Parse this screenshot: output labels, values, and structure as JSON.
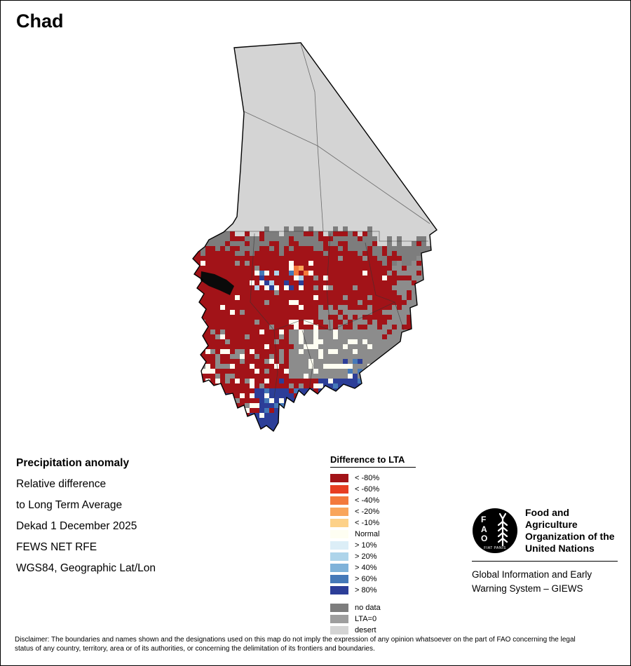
{
  "page": {
    "title": "Chad"
  },
  "info": {
    "heading": "Precipitation anomaly",
    "lines": [
      "Relative difference",
      "to Long Term Average",
      "Dekad 1 December 2025",
      "FEWS NET RFE",
      "WGS84, Geographic Lat/Lon"
    ]
  },
  "legend": {
    "title": "Difference to LTA",
    "items": [
      {
        "label": "< -80%",
        "color": "#a21318"
      },
      {
        "label": "< -60%",
        "color": "#e73e22"
      },
      {
        "label": "< -40%",
        "color": "#f3793b"
      },
      {
        "label": "< -20%",
        "color": "#f9a55a"
      },
      {
        "label": "< -10%",
        "color": "#fdd189"
      },
      {
        "label": "Normal",
        "color": "#fefef2"
      },
      {
        "label": "> 10%",
        "color": "#dceef7"
      },
      {
        "label": "> 20%",
        "color": "#aed4ea"
      },
      {
        "label": "> 40%",
        "color": "#7fb2d9"
      },
      {
        "label": "> 60%",
        "color": "#4579b8"
      },
      {
        "label": "> 80%",
        "color": "#2c3e98"
      }
    ],
    "extra_items": [
      {
        "label": "no data",
        "color": "#7d7d7d"
      },
      {
        "label": "LTA=0",
        "color": "#9e9e9e"
      },
      {
        "label": "desert",
        "color": "#d4d4d4"
      }
    ]
  },
  "map": {
    "country": "Chad",
    "colors": {
      "band_gray": "#7d7d7d",
      "region_gray": "#8c8c8c",
      "desert": "#d4d4d4",
      "outline": "#000000",
      "lake": "#0a0a0a"
    }
  },
  "footer": {
    "logo_text": "FAO",
    "logo_motto": "FIAT PANIS",
    "fao_lines": [
      "Food and Agriculture",
      "Organization of the",
      "United Nations"
    ],
    "giews_lines": [
      "Global Information and Early",
      "Warning System – GIEWS"
    ]
  },
  "disclaimer": "Disclaimer: The boundaries and names shown and the designations used on this map do not imply the expression of any opinion whatsoever on the part of FAO concerning the legal status of any country, territory, area or of its authorities, or concerning the delimitation of its frontiers and boundaries."
}
